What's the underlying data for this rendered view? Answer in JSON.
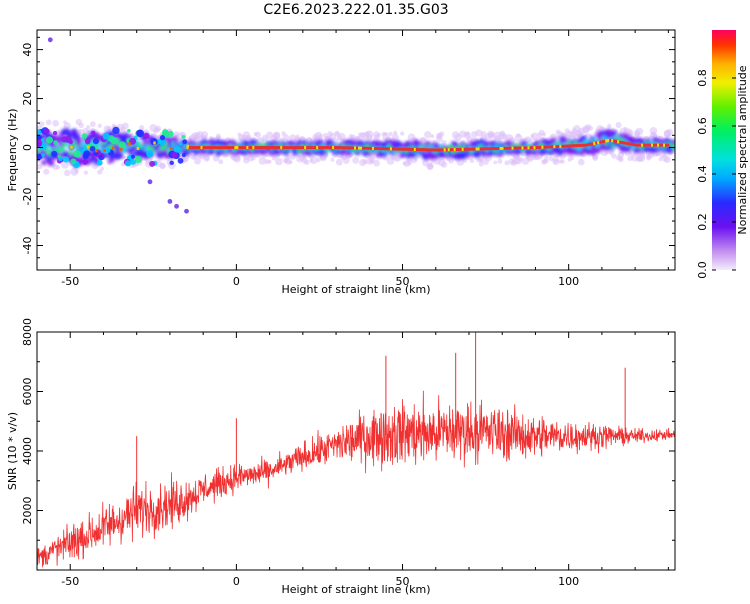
{
  "title": "C2E6.2023.222.01.35.G03",
  "colors": {
    "snr_line": "#f03030",
    "axis": "#000000",
    "center_line": "#e03030"
  },
  "chart_data": [
    {
      "type": "heatmap",
      "xlabel": "Height of straight line (km)",
      "ylabel": "Frequency (Hz)",
      "xlim": [
        -60,
        132
      ],
      "ylim": [
        -50,
        48
      ],
      "xticks": [
        "-50",
        "0",
        "50",
        "100"
      ],
      "xtick_values": [
        -50,
        0,
        50,
        100
      ],
      "yticks": [
        "40",
        "20",
        "0",
        "-20",
        "-40"
      ],
      "ytick_values": [
        40,
        20,
        0,
        -20,
        -40
      ],
      "colorbar": {
        "label": "Normalized spectral amplitude",
        "range": [
          0,
          1
        ],
        "ticks": [
          "0.0",
          "0.2",
          "0.4",
          "0.6",
          "0.8"
        ],
        "tick_values": [
          0.0,
          0.2,
          0.4,
          0.6,
          0.8
        ]
      },
      "band": [
        {
          "x": -60,
          "center": 0,
          "halfwidth": 6
        },
        {
          "x": -50,
          "center": 0,
          "halfwidth": 7
        },
        {
          "x": -40,
          "center": 0,
          "halfwidth": 6
        },
        {
          "x": -30,
          "center": 1,
          "halfwidth": 4
        },
        {
          "x": -20,
          "center": 0,
          "halfwidth": 4
        },
        {
          "x": -15,
          "center": 0,
          "halfwidth": 2
        },
        {
          "x": 0,
          "center": 0,
          "halfwidth": 2
        },
        {
          "x": 30,
          "center": 0,
          "halfwidth": 2
        },
        {
          "x": 60,
          "center": -1,
          "halfwidth": 3
        },
        {
          "x": 90,
          "center": 0,
          "halfwidth": 2
        },
        {
          "x": 105,
          "center": 1,
          "halfwidth": 3
        },
        {
          "x": 112,
          "center": 3,
          "halfwidth": 4
        },
        {
          "x": 120,
          "center": 1,
          "halfwidth": 2
        },
        {
          "x": 132,
          "center": 1,
          "halfwidth": 2
        }
      ],
      "outliers": [
        {
          "x": -56,
          "y": 44
        },
        {
          "x": -20,
          "y": -22
        },
        {
          "x": -18,
          "y": -24
        },
        {
          "x": -15,
          "y": -26
        },
        {
          "x": -26,
          "y": -14
        }
      ]
    },
    {
      "type": "line",
      "xlabel": "Height of straight line (km)",
      "ylabel": "SNR (10 * v/v)",
      "xlim": [
        -60,
        132
      ],
      "ylim": [
        0,
        8000
      ],
      "xticks": [
        "-50",
        "0",
        "50",
        "100"
      ],
      "xtick_values": [
        -50,
        0,
        50,
        100
      ],
      "yticks": [
        "8000",
        "6000",
        "4000",
        "2000"
      ],
      "ytick_values": [
        8000,
        6000,
        4000,
        2000
      ],
      "series": [
        {
          "x": [
            -60,
            -50,
            -40,
            -30,
            -20,
            -15,
            -10,
            0,
            10,
            20,
            30,
            40,
            50,
            60,
            70,
            80,
            90,
            100,
            110,
            120,
            132
          ],
          "mean": [
            400,
            900,
            1400,
            2000,
            2200,
            2400,
            2700,
            3100,
            3300,
            3800,
            4200,
            4500,
            4600,
            4600,
            4700,
            4600,
            4500,
            4500,
            4500,
            4500,
            4550
          ],
          "spread": [
            500,
            900,
            1100,
            1300,
            1200,
            1000,
            800,
            700,
            600,
            700,
            900,
            1400,
            1600,
            1600,
            1500,
            1300,
            1100,
            800,
            600,
            350,
            250
          ],
          "peaks": [
            {
              "x": -30,
              "y": 4500
            },
            {
              "x": 0,
              "y": 5100
            },
            {
              "x": 45,
              "y": 7200
            },
            {
              "x": 72,
              "y": 8000
            },
            {
              "x": 66,
              "y": 7300
            },
            {
              "x": 117,
              "y": 6800
            }
          ]
        }
      ]
    }
  ]
}
